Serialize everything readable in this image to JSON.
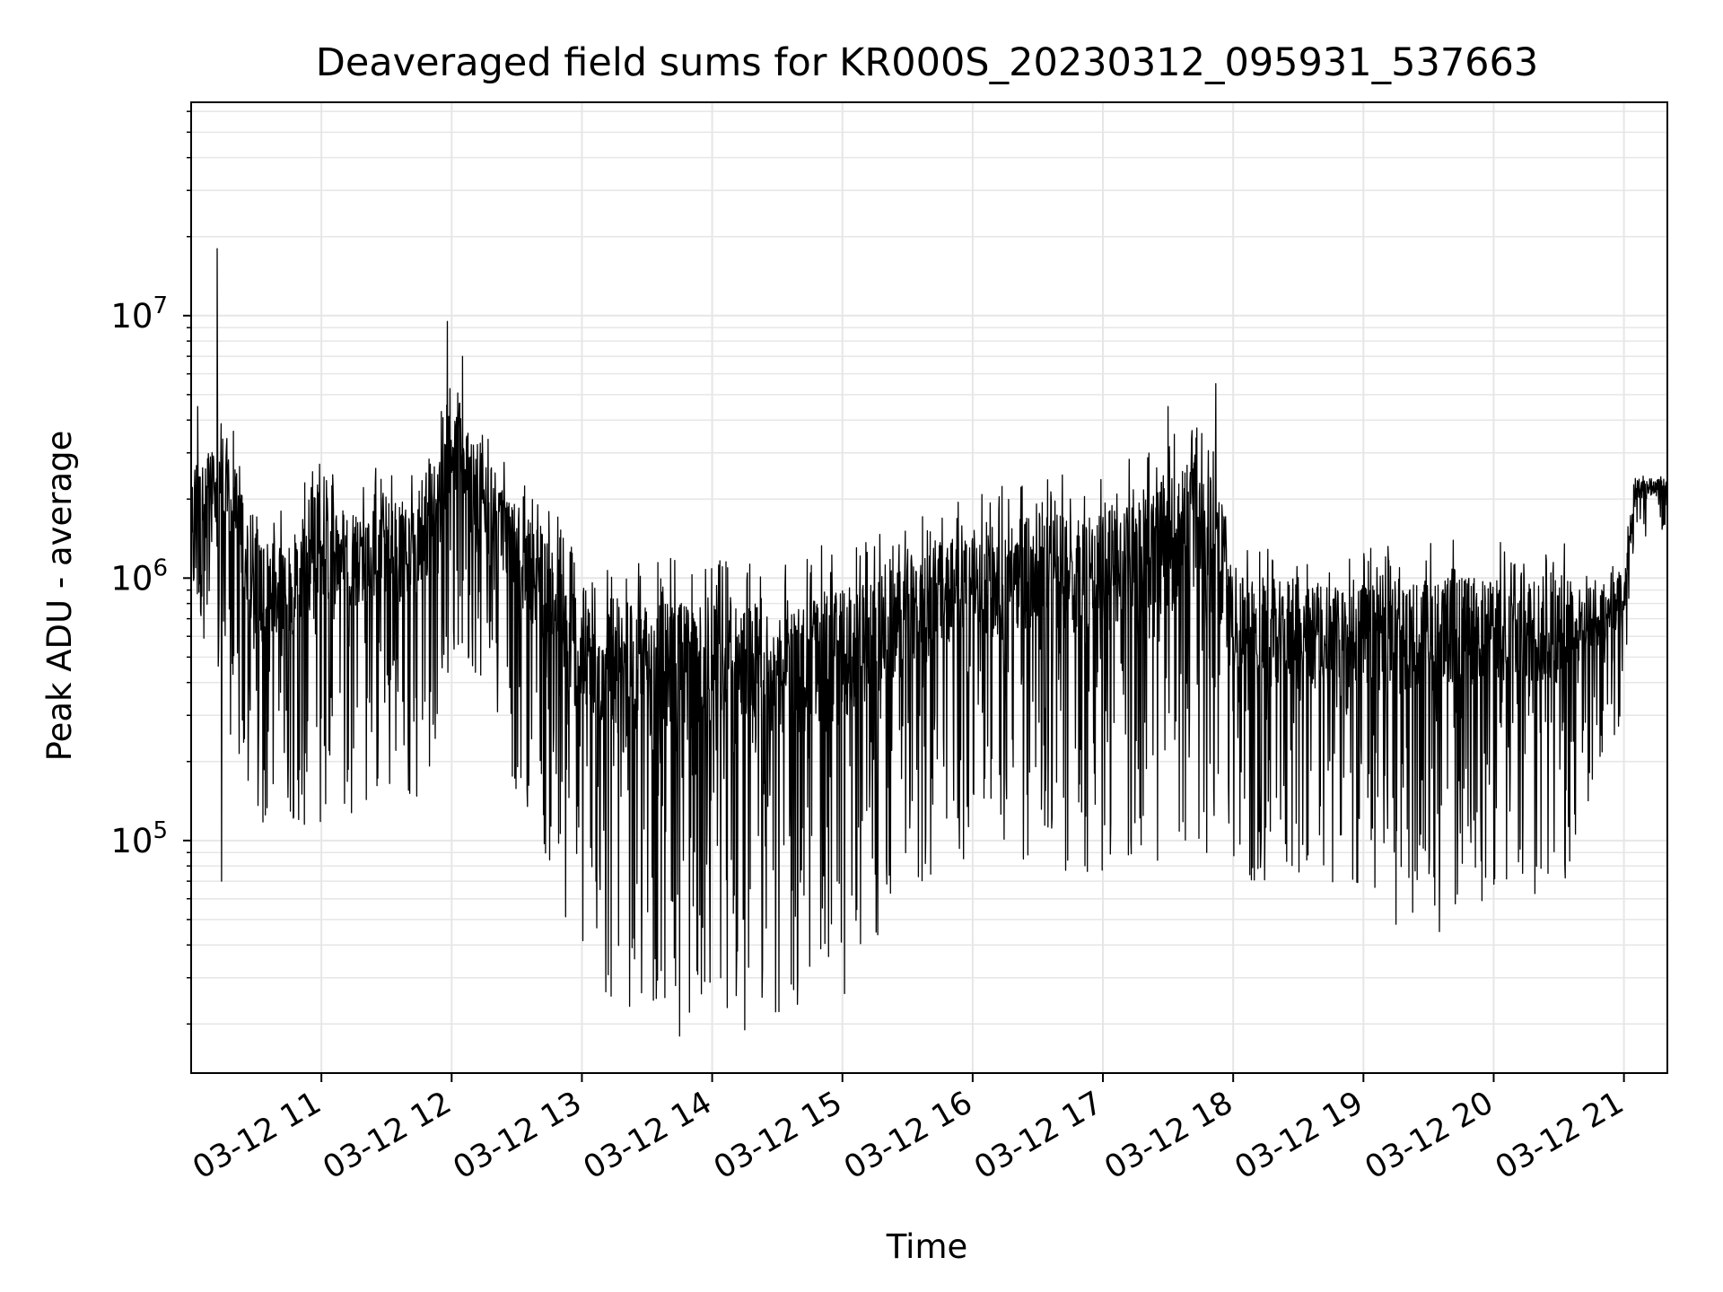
{
  "chart_data": {
    "type": "line",
    "title": "Deaveraged field sums for KR000S_20230312_095931_537663",
    "xlabel": "Time",
    "ylabel": "Peak ADU - average",
    "x_axis": {
      "type": "datetime",
      "range": [
        "2023-03-12 10:00",
        "2023-03-12 21:20"
      ],
      "ticks": [
        {
          "t": "2023-03-12 11:00",
          "label": "03-12 11"
        },
        {
          "t": "2023-03-12 12:00",
          "label": "03-12 12"
        },
        {
          "t": "2023-03-12 13:00",
          "label": "03-12 13"
        },
        {
          "t": "2023-03-12 14:00",
          "label": "03-12 14"
        },
        {
          "t": "2023-03-12 15:00",
          "label": "03-12 15"
        },
        {
          "t": "2023-03-12 16:00",
          "label": "03-12 16"
        },
        {
          "t": "2023-03-12 17:00",
          "label": "03-12 17"
        },
        {
          "t": "2023-03-12 18:00",
          "label": "03-12 18"
        },
        {
          "t": "2023-03-12 19:00",
          "label": "03-12 19"
        },
        {
          "t": "2023-03-12 20:00",
          "label": "03-12 20"
        },
        {
          "t": "2023-03-12 21:00",
          "label": "03-12 21"
        }
      ]
    },
    "y_axis": {
      "scale": "log",
      "range": [
        13000,
        65000000
      ],
      "major_ticks": [
        {
          "value": 100000,
          "base": "10",
          "exp": "5"
        },
        {
          "value": 1000000,
          "base": "10",
          "exp": "6"
        },
        {
          "value": 10000000,
          "base": "10",
          "exp": "7"
        }
      ]
    },
    "grid": {
      "major": true,
      "minor_y": true,
      "color": "#e6e6e6"
    },
    "series": [
      {
        "color": "#000000",
        "envelope": [
          {
            "t": "2023-03-12 10:00",
            "low": 900000,
            "high": 2500000
          },
          {
            "t": "2023-03-12 10:15",
            "low": 300000,
            "high": 5000000
          },
          {
            "t": "2023-03-12 10:30",
            "low": 100000,
            "high": 2000000
          },
          {
            "t": "2023-03-12 10:45",
            "low": 120000,
            "high": 1800000
          },
          {
            "t": "2023-03-12 11:00",
            "low": 100000,
            "high": 3000000
          },
          {
            "t": "2023-03-12 11:15",
            "low": 130000,
            "high": 2500000
          },
          {
            "t": "2023-03-12 11:30",
            "low": 150000,
            "high": 2800000
          },
          {
            "t": "2023-03-12 11:45",
            "low": 120000,
            "high": 2500000
          },
          {
            "t": "2023-03-12 12:00",
            "low": 500000,
            "high": 6000000
          },
          {
            "t": "2023-03-12 12:15",
            "low": 400000,
            "high": 4000000
          },
          {
            "t": "2023-03-12 12:30",
            "low": 150000,
            "high": 2500000
          },
          {
            "t": "2023-03-12 12:45",
            "low": 80000,
            "high": 2000000
          },
          {
            "t": "2023-03-12 13:00",
            "low": 25000,
            "high": 1300000
          },
          {
            "t": "2023-03-12 13:30",
            "low": 22000,
            "high": 1200000
          },
          {
            "t": "2023-03-12 14:00",
            "low": 22000,
            "high": 1200000
          },
          {
            "t": "2023-03-12 14:30",
            "low": 22000,
            "high": 1200000
          },
          {
            "t": "2023-03-12 15:00",
            "low": 25000,
            "high": 1400000
          },
          {
            "t": "2023-03-12 15:30",
            "low": 60000,
            "high": 1600000
          },
          {
            "t": "2023-03-12 16:00",
            "low": 90000,
            "high": 2200000
          },
          {
            "t": "2023-03-12 16:30",
            "low": 80000,
            "high": 2500000
          },
          {
            "t": "2023-03-12 17:00",
            "low": 70000,
            "high": 2500000
          },
          {
            "t": "2023-03-12 17:30",
            "low": 80000,
            "high": 3500000
          },
          {
            "t": "2023-03-12 17:50",
            "low": 90000,
            "high": 5000000
          },
          {
            "t": "2023-03-12 18:00",
            "low": 70000,
            "high": 1400000
          },
          {
            "t": "2023-03-12 18:30",
            "low": 60000,
            "high": 1300000
          },
          {
            "t": "2023-03-12 19:00",
            "low": 60000,
            "high": 1300000
          },
          {
            "t": "2023-03-12 19:30",
            "low": 50000,
            "high": 1400000
          },
          {
            "t": "2023-03-12 20:00",
            "low": 60000,
            "high": 1400000
          },
          {
            "t": "2023-03-12 20:30",
            "low": 60000,
            "high": 1400000
          },
          {
            "t": "2023-03-12 21:00",
            "low": 300000,
            "high": 1200000
          },
          {
            "t": "2023-03-12 21:05",
            "low": 1400000,
            "high": 2500000
          },
          {
            "t": "2023-03-12 21:20",
            "low": 1500000,
            "high": 2600000
          }
        ],
        "spikes": [
          {
            "t": "2023-03-12 10:12",
            "value": 18000000
          },
          {
            "t": "2023-03-12 10:03",
            "value": 4500000
          },
          {
            "t": "2023-03-12 10:14",
            "value": 70000
          },
          {
            "t": "2023-03-12 11:58",
            "value": 9500000
          },
          {
            "t": "2023-03-12 12:05",
            "value": 7000000
          },
          {
            "t": "2023-03-12 13:45",
            "value": 18000
          },
          {
            "t": "2023-03-12 14:15",
            "value": 19000
          },
          {
            "t": "2023-03-12 17:52",
            "value": 5500000
          },
          {
            "t": "2023-03-12 17:30",
            "value": 4500000
          },
          {
            "t": "2023-03-12 16:45",
            "value": 2000000
          },
          {
            "t": "2023-03-12 19:35",
            "value": 45000
          },
          {
            "t": "2023-03-12 19:15",
            "value": 48000
          }
        ]
      }
    ]
  }
}
